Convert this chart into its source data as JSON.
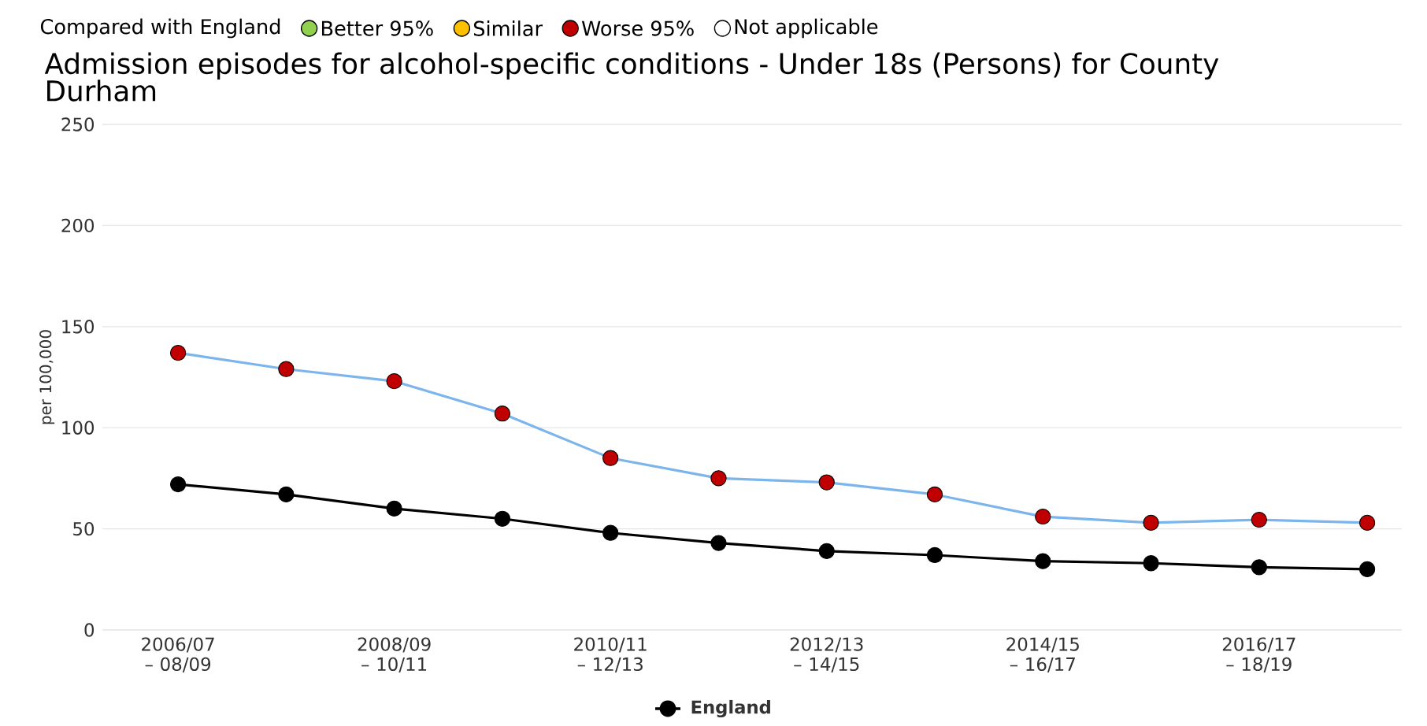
{
  "chart_data": {
    "type": "line",
    "title": "Admission episodes for alcohol-specific conditions - Under 18s (Persons) for County Durham",
    "ylabel": "per 100,000",
    "legend_title": "Compared with England",
    "categories": [
      "2006/07 – 08/09",
      null,
      "2008/09 – 10/11",
      null,
      "2010/11 – 12/13",
      null,
      "2012/13 – 14/15",
      null,
      "2014/15 – 16/17",
      null,
      "2016/17 – 18/19",
      null
    ],
    "ylim": [
      0,
      250
    ],
    "yticks": [
      0,
      50,
      100,
      150,
      200,
      250
    ],
    "grid": "y",
    "legend": "top left",
    "marker": "circle",
    "series": [
      {
        "color": "#7cb5ec",
        "colors": [
          "#c00000",
          "#c00000",
          "#c00000",
          "#c00000",
          "#c00000",
          "#c00000",
          "#c00000",
          "#c00000",
          "#c00000",
          "#c00000",
          "#c00000",
          "#c00000"
        ],
        "values": [
          137,
          129,
          123,
          107,
          85,
          75,
          73,
          67,
          56,
          53,
          54.5,
          53
        ]
      },
      {
        "name": "England",
        "color": "#000000",
        "values": [
          72,
          67,
          60,
          55,
          48,
          43,
          39,
          37,
          34,
          33,
          31,
          30
        ]
      },
      {
        "name": "Better 95%",
        "type": "scatter",
        "color": "#92d050",
        "values": [
          null,
          null,
          null,
          null,
          null,
          null,
          null,
          null,
          null,
          null,
          null,
          null
        ]
      },
      {
        "name": "Similar",
        "type": "scatter",
        "color": "#ffc000",
        "values": [
          null,
          null,
          null,
          null,
          null,
          null,
          null,
          null,
          null,
          null,
          null,
          null
        ]
      },
      {
        "name": "Worse 95%",
        "type": "scatter",
        "color": "#c00000",
        "values": [
          null,
          null,
          null,
          null,
          null,
          null,
          null,
          null,
          null,
          null,
          null,
          null
        ]
      },
      {
        "name": "Not applicable",
        "type": "scatter",
        "color": "#ffffff",
        "values": [
          null,
          null,
          null,
          null,
          null,
          null,
          null,
          null,
          null,
          null,
          null,
          null
        ]
      }
    ]
  }
}
